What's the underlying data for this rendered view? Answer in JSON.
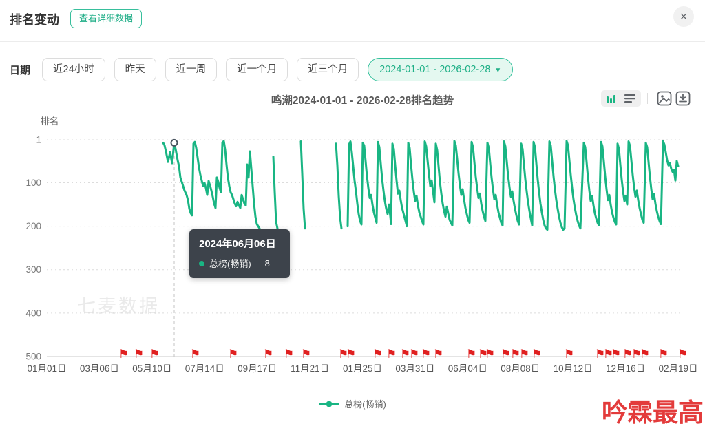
{
  "header": {
    "title": "排名变动",
    "detail_button": "查看详细数据",
    "close_symbol": "×"
  },
  "filters": {
    "label": "日期",
    "quick_options": [
      "近24小时",
      "昨天",
      "近一周",
      "近一个月",
      "近三个月"
    ],
    "selected_range": "2024-01-01 - 2026-02-28",
    "caret": "▼"
  },
  "chart_header": {
    "title": "鸣潮2024-01-01 - 2026-02-28排名趋势"
  },
  "toolbar": {
    "icons": [
      "chart-type-trend",
      "chart-type-list",
      "export-image",
      "download-data"
    ]
  },
  "watermark": "七麦数据",
  "tooltip": {
    "date": "2024年06月06日",
    "series": "总榜(畅销)",
    "value": "8"
  },
  "legend": {
    "label": "总榜(畅销)"
  },
  "annotation": {
    "text": "吟霖最高"
  },
  "colors": {
    "accent": "#19b583",
    "flag": "#e02020",
    "selected_bg": "#e4f8f0",
    "tooltip_bg": "#3d434b"
  },
  "chart_data": {
    "type": "line",
    "title": "鸣潮2024-01-01 - 2026-02-28排名趋势",
    "ylabel": "排名",
    "y_ticks": [
      1,
      100,
      200,
      300,
      400,
      500
    ],
    "y_inverted": true,
    "ylim": [
      1,
      500
    ],
    "grid": "dotted-horizontal",
    "legend_position": "bottom-center",
    "series_name": "总榜(畅销)",
    "line_color": "#19b583",
    "x_ticks": [
      "01月01日",
      "03月06日",
      "05月10日",
      "07月14日",
      "09月17日",
      "11月21日",
      "01月25日",
      "03月31日",
      "06月04日",
      "08月08日",
      "10月12日",
      "12月16日",
      "02月19日"
    ],
    "marked_point": {
      "x": 253,
      "rank": 8,
      "date": "2024年06月06日",
      "value_label": "8"
    },
    "flag_x": [
      178,
      200,
      223,
      282,
      337,
      388,
      418,
      443,
      497,
      508,
      547,
      567,
      587,
      600,
      617,
      635,
      683,
      700,
      710,
      733,
      747,
      760,
      778,
      825,
      870,
      882,
      893,
      910,
      923,
      935,
      962,
      990
    ],
    "segments": [
      [
        [
          237,
          8
        ],
        [
          239,
          14
        ],
        [
          241,
          28
        ],
        [
          244,
          52
        ],
        [
          247,
          30
        ],
        [
          250,
          55
        ],
        [
          253,
          8
        ],
        [
          255,
          22
        ],
        [
          258,
          48
        ],
        [
          260,
          62
        ],
        [
          262,
          88
        ],
        [
          264,
          98
        ],
        [
          266,
          108
        ],
        [
          268,
          118
        ],
        [
          271,
          128
        ],
        [
          273,
          140
        ],
        [
          275,
          160
        ],
        [
          277,
          170
        ],
        [
          279,
          175
        ],
        [
          281,
          10
        ],
        [
          283,
          6
        ],
        [
          285,
          20
        ],
        [
          287,
          42
        ],
        [
          289,
          65
        ],
        [
          291,
          82
        ],
        [
          293,
          95
        ],
        [
          295,
          108
        ],
        [
          297,
          100
        ],
        [
          299,
          112
        ],
        [
          301,
          128
        ],
        [
          303,
          96
        ],
        [
          305,
          106
        ],
        [
          307,
          118
        ],
        [
          309,
          132
        ],
        [
          311,
          148
        ],
        [
          313,
          158
        ],
        [
          315,
          88
        ],
        [
          317,
          98
        ],
        [
          319,
          112
        ],
        [
          321,
          122
        ],
        [
          323,
          8
        ],
        [
          325,
          4
        ],
        [
          327,
          24
        ],
        [
          329,
          58
        ],
        [
          331,
          88
        ],
        [
          333,
          108
        ],
        [
          335,
          122
        ],
        [
          337,
          128
        ],
        [
          339,
          138
        ],
        [
          341,
          148
        ],
        [
          343,
          154
        ],
        [
          345,
          144
        ],
        [
          347,
          152
        ],
        [
          349,
          158
        ],
        [
          351,
          128
        ],
        [
          353,
          138
        ],
        [
          355,
          148
        ],
        [
          357,
          152
        ],
        [
          359,
          58
        ],
        [
          361,
          88
        ],
        [
          363,
          28
        ],
        [
          365,
          68
        ],
        [
          367,
          108
        ],
        [
          369,
          148
        ],
        [
          371,
          178
        ],
        [
          373,
          195
        ],
        [
          375,
          200
        ],
        [
          377,
          205
        ]
      ],
      [
        [
          397,
          40
        ],
        [
          399,
          120
        ],
        [
          401,
          190
        ],
        [
          403,
          205
        ]
      ],
      [
        [
          437,
          5
        ],
        [
          439,
          80
        ],
        [
          441,
          160
        ],
        [
          443,
          205
        ]
      ],
      [
        [
          488,
          10
        ],
        [
          490,
          60
        ],
        [
          492,
          130
        ],
        [
          494,
          180
        ],
        [
          496,
          205
        ]
      ],
      [
        [
          505,
          200
        ],
        [
          507,
          12
        ],
        [
          509,
          5
        ],
        [
          511,
          30
        ],
        [
          513,
          62
        ],
        [
          515,
          95
        ],
        [
          517,
          120
        ],
        [
          519,
          148
        ],
        [
          521,
          172
        ],
        [
          523,
          188
        ],
        [
          525,
          196
        ],
        [
          527,
          8
        ],
        [
          529,
          15
        ],
        [
          531,
          50
        ],
        [
          533,
          85
        ],
        [
          535,
          112
        ],
        [
          537,
          135
        ],
        [
          539,
          128
        ],
        [
          541,
          150
        ],
        [
          543,
          168
        ],
        [
          545,
          180
        ],
        [
          547,
          192
        ],
        [
          549,
          6
        ],
        [
          551,
          18
        ],
        [
          553,
          55
        ],
        [
          555,
          90
        ],
        [
          557,
          118
        ],
        [
          559,
          142
        ],
        [
          561,
          160
        ],
        [
          563,
          172
        ],
        [
          565,
          150
        ],
        [
          567,
          178
        ],
        [
          568,
          195
        ],
        [
          570,
          10
        ],
        [
          572,
          22
        ],
        [
          574,
          60
        ],
        [
          576,
          95
        ],
        [
          578,
          125
        ],
        [
          580,
          118
        ],
        [
          582,
          140
        ],
        [
          584,
          158
        ],
        [
          586,
          170
        ],
        [
          588,
          182
        ],
        [
          591,
          200
        ],
        [
          593,
          8
        ],
        [
          595,
          20
        ],
        [
          597,
          58
        ],
        [
          599,
          92
        ],
        [
          601,
          120
        ],
        [
          603,
          142
        ],
        [
          605,
          130
        ],
        [
          607,
          152
        ],
        [
          609,
          168
        ],
        [
          611,
          178
        ],
        [
          613,
          188
        ],
        [
          615,
          196
        ],
        [
          617,
          5
        ],
        [
          619,
          16
        ],
        [
          621,
          48
        ],
        [
          623,
          80
        ],
        [
          625,
          108
        ],
        [
          627,
          95
        ],
        [
          629,
          120
        ],
        [
          631,
          145
        ],
        [
          633,
          10
        ],
        [
          635,
          25
        ],
        [
          637,
          62
        ],
        [
          639,
          98
        ],
        [
          641,
          125
        ],
        [
          643,
          148
        ],
        [
          645,
          165
        ],
        [
          647,
          178
        ],
        [
          649,
          155
        ],
        [
          651,
          170
        ],
        [
          653,
          185
        ],
        [
          655,
          192
        ],
        [
          657,
          198
        ],
        [
          660,
          4
        ],
        [
          662,
          14
        ],
        [
          664,
          45
        ],
        [
          666,
          78
        ],
        [
          668,
          105
        ],
        [
          670,
          128
        ],
        [
          672,
          115
        ],
        [
          674,
          138
        ],
        [
          676,
          158
        ],
        [
          678,
          172
        ],
        [
          680,
          185
        ],
        [
          682,
          192
        ],
        [
          685,
          6
        ],
        [
          687,
          18
        ],
        [
          689,
          52
        ],
        [
          691,
          86
        ],
        [
          693,
          112
        ],
        [
          695,
          135
        ],
        [
          697,
          125
        ],
        [
          699,
          148
        ],
        [
          701,
          165
        ],
        [
          703,
          178
        ],
        [
          705,
          188
        ],
        [
          708,
          8
        ],
        [
          710,
          20
        ],
        [
          712,
          55
        ],
        [
          714,
          88
        ],
        [
          716,
          115
        ],
        [
          718,
          138
        ],
        [
          720,
          128
        ],
        [
          722,
          150
        ],
        [
          724,
          168
        ],
        [
          726,
          180
        ],
        [
          728,
          192
        ],
        [
          730,
          198
        ],
        [
          732,
          5
        ],
        [
          734,
          16
        ],
        [
          736,
          50
        ],
        [
          738,
          84
        ],
        [
          740,
          110
        ],
        [
          742,
          132
        ],
        [
          744,
          120
        ],
        [
          746,
          142
        ],
        [
          748,
          160
        ],
        [
          750,
          175
        ],
        [
          752,
          188
        ],
        [
          754,
          196
        ],
        [
          757,
          10
        ],
        [
          759,
          22
        ],
        [
          761,
          58
        ],
        [
          763,
          92
        ],
        [
          765,
          120
        ],
        [
          767,
          145
        ],
        [
          769,
          165
        ],
        [
          771,
          182
        ],
        [
          773,
          198
        ],
        [
          775,
          6
        ],
        [
          777,
          18
        ],
        [
          779,
          55
        ],
        [
          781,
          92
        ],
        [
          783,
          122
        ],
        [
          785,
          148
        ],
        [
          787,
          168
        ],
        [
          789,
          185
        ],
        [
          791,
          198
        ],
        [
          793,
          205
        ],
        [
          795,
          208
        ],
        [
          798,
          5
        ],
        [
          800,
          15
        ],
        [
          802,
          50
        ],
        [
          804,
          85
        ],
        [
          806,
          115
        ],
        [
          808,
          140
        ],
        [
          810,
          160
        ],
        [
          812,
          178
        ],
        [
          814,
          192
        ],
        [
          816,
          202
        ],
        [
          818,
          208
        ],
        [
          820,
          205
        ],
        [
          823,
          4
        ],
        [
          825,
          14
        ],
        [
          827,
          48
        ],
        [
          829,
          82
        ],
        [
          831,
          112
        ],
        [
          833,
          138
        ],
        [
          835,
          158
        ],
        [
          837,
          175
        ],
        [
          839,
          188
        ],
        [
          841,
          198
        ],
        [
          843,
          205
        ],
        [
          848,
          8
        ],
        [
          850,
          18
        ],
        [
          852,
          52
        ],
        [
          854,
          88
        ],
        [
          856,
          118
        ],
        [
          858,
          142
        ],
        [
          860,
          130
        ],
        [
          862,
          152
        ],
        [
          864,
          170
        ],
        [
          866,
          182
        ],
        [
          868,
          192
        ],
        [
          870,
          198
        ],
        [
          873,
          6
        ],
        [
          875,
          16
        ],
        [
          877,
          50
        ],
        [
          879,
          85
        ],
        [
          881,
          115
        ],
        [
          883,
          140
        ],
        [
          885,
          128
        ],
        [
          887,
          150
        ],
        [
          889,
          168
        ],
        [
          891,
          180
        ],
        [
          893,
          190
        ],
        [
          895,
          196
        ],
        [
          897,
          10
        ],
        [
          899,
          22
        ],
        [
          901,
          58
        ],
        [
          903,
          92
        ],
        [
          905,
          120
        ],
        [
          907,
          142
        ],
        [
          909,
          130
        ],
        [
          911,
          150
        ],
        [
          913,
          5
        ],
        [
          915,
          15
        ],
        [
          917,
          48
        ],
        [
          919,
          82
        ],
        [
          921,
          110
        ],
        [
          923,
          132
        ],
        [
          925,
          118
        ],
        [
          927,
          140
        ],
        [
          929,
          158
        ],
        [
          931,
          172
        ],
        [
          933,
          185
        ],
        [
          935,
          192
        ],
        [
          938,
          8
        ],
        [
          940,
          18
        ],
        [
          942,
          52
        ],
        [
          944,
          86
        ],
        [
          946,
          115
        ],
        [
          948,
          138
        ],
        [
          950,
          126
        ],
        [
          952,
          148
        ],
        [
          954,
          165
        ],
        [
          956,
          178
        ],
        [
          958,
          188
        ],
        [
          960,
          195
        ],
        [
          963,
          4
        ],
        [
          965,
          12
        ],
        [
          967,
          30
        ],
        [
          969,
          48
        ],
        [
          971,
          60
        ],
        [
          973,
          55
        ],
        [
          975,
          68
        ],
        [
          977,
          75
        ],
        [
          979,
          70
        ],
        [
          981,
          95
        ],
        [
          983,
          50
        ],
        [
          985,
          62
        ]
      ]
    ]
  }
}
